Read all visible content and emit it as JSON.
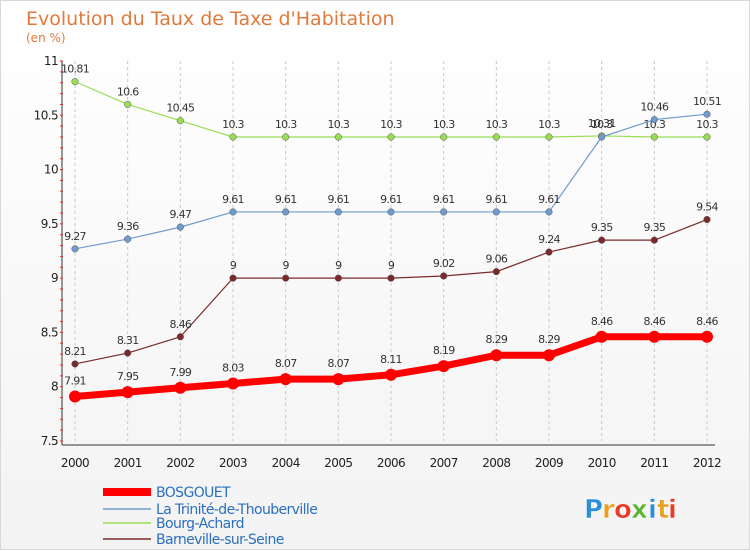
{
  "chart_data": {
    "type": "line",
    "title": "Evolution du Taux de Taxe d'Habitation",
    "subtitle": "(en %)",
    "x": [
      "2000",
      "2001",
      "2002",
      "2003",
      "2004",
      "2005",
      "2006",
      "2007",
      "2008",
      "2009",
      "2010",
      "2011",
      "2012"
    ],
    "ylim": [
      7.5,
      11
    ],
    "yticks": [
      "7.5",
      "8",
      "8.5",
      "9",
      "9.5",
      "10",
      "10.5",
      "11"
    ],
    "grid": "vertical dashed",
    "legend_position": "bottom-left",
    "series": [
      {
        "name": "BOSGOUET",
        "color": "#ff0000",
        "values": [
          7.91,
          7.95,
          7.99,
          8.03,
          8.07,
          8.07,
          8.11,
          8.19,
          8.29,
          8.29,
          8.46,
          8.46,
          8.46
        ],
        "labels": [
          "7.91",
          "7.95",
          "7.99",
          "8.03",
          "8.07",
          "8.07",
          "8.11",
          "8.19",
          "8.29",
          "8.29",
          "8.46",
          "8.46",
          "8.46"
        ]
      },
      {
        "name": "La Trinité-de-Thouberville",
        "color": "#6f9ccc",
        "values": [
          9.27,
          9.36,
          9.47,
          9.61,
          9.61,
          9.61,
          9.61,
          9.61,
          9.61,
          9.61,
          10.3,
          10.46,
          10.51
        ],
        "labels": [
          "9.27",
          "9.36",
          "9.47",
          "9.61",
          "9.61",
          "9.61",
          "9.61",
          "9.61",
          "9.61",
          "9.61",
          "10.3",
          "10.46",
          "10.51"
        ]
      },
      {
        "name": "Bourg-Achard",
        "color": "#99dd55",
        "values": [
          10.81,
          10.6,
          10.45,
          10.3,
          10.3,
          10.3,
          10.3,
          10.3,
          10.3,
          10.3,
          10.31,
          10.3,
          10.3
        ],
        "labels": [
          "10.81",
          "10.6",
          "10.45",
          "10.3",
          "10.3",
          "10.3",
          "10.3",
          "10.3",
          "10.3",
          "10.3",
          "10.31",
          "10.3",
          "10.3"
        ]
      },
      {
        "name": "Barneville-sur-Seine",
        "color": "#7a2a2a",
        "values": [
          8.21,
          8.31,
          8.46,
          9,
          9,
          9,
          9,
          9.02,
          9.06,
          9.24,
          9.35,
          9.35,
          9.54
        ],
        "labels": [
          "8.21",
          "8.31",
          "8.46",
          "9",
          "9",
          "9",
          "9",
          "9.02",
          "9.06",
          "9.24",
          "9.35",
          "9.35",
          "9.54"
        ]
      }
    ]
  },
  "brand": {
    "letters": [
      "P",
      "r",
      "o",
      "x",
      "i",
      "t",
      "i"
    ],
    "colors": [
      "#2a8fd6",
      "#e8a020",
      "#e63c2a",
      "#5cb531",
      "#2a8fd6",
      "#e8a020",
      "#e63c2a"
    ]
  }
}
